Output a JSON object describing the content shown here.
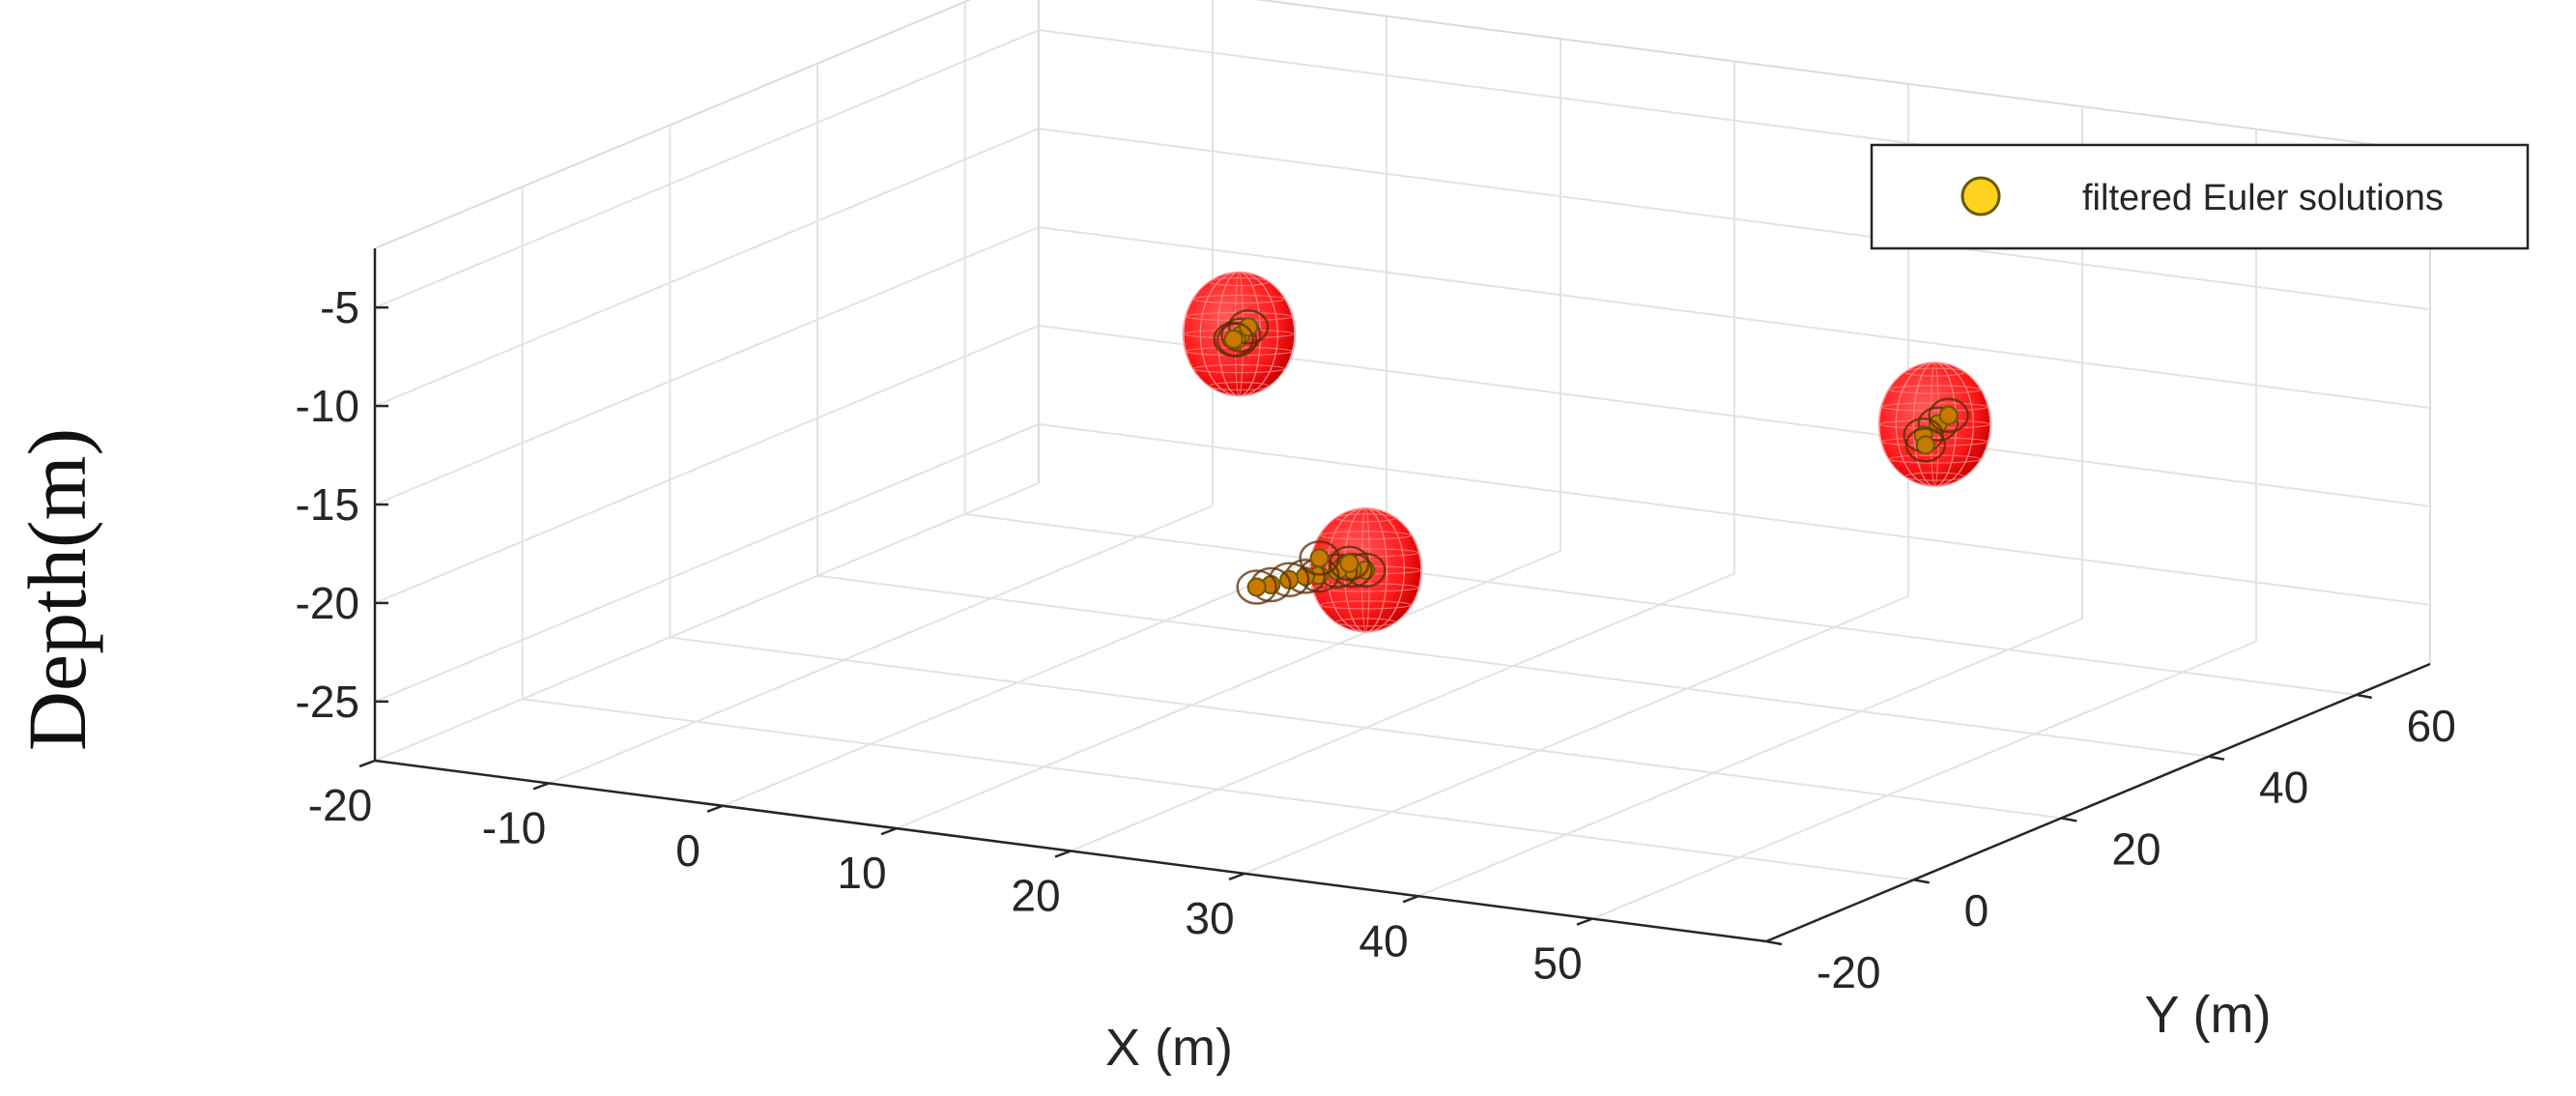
{
  "chart_data": {
    "type": "scatter",
    "dimensions": 3,
    "title": "",
    "xlabel": "X (m)",
    "ylabel": "Y (m)",
    "zlabel": "Depth(m)",
    "xlim": [
      -20,
      60
    ],
    "ylim": [
      -20,
      70
    ],
    "zlim": [
      -28,
      -2
    ],
    "x_ticks": [
      -20,
      -10,
      0,
      10,
      20,
      30,
      40,
      50
    ],
    "y_ticks": [
      -20,
      0,
      20,
      40,
      60
    ],
    "z_ticks": [
      -5,
      -10,
      -15,
      -20,
      -25
    ],
    "grid": true,
    "legend": {
      "position": "top-right",
      "entries": [
        "filtered Euler solutions"
      ]
    },
    "colors": {
      "marker_fill": "#ffd21f",
      "marker_edge": "#6b5a00",
      "source_sphere": "#ff1a1a",
      "solution_cluster": "#c97800"
    },
    "source_spheres": [
      {
        "x": 0,
        "y": 50,
        "z": -15
      },
      {
        "x": 20,
        "y": 20,
        "z": -20
      },
      {
        "x": 40,
        "y": 50,
        "z": -15
      }
    ],
    "series": [
      {
        "name": "filtered Euler solutions",
        "points": [
          {
            "x": 0.2,
            "y": 49.8,
            "z": -15.0
          },
          {
            "x": -0.3,
            "y": 50.4,
            "z": -15.4
          },
          {
            "x": 0.5,
            "y": 50.1,
            "z": -14.6
          },
          {
            "x": -0.1,
            "y": 49.5,
            "z": -15.2
          },
          {
            "x": 20.0,
            "y": 20.0,
            "z": -20.0
          },
          {
            "x": 18.6,
            "y": 21.5,
            "z": -20.4
          },
          {
            "x": 17.2,
            "y": 22.8,
            "z": -20.8
          },
          {
            "x": 15.8,
            "y": 23.6,
            "z": -21.3
          },
          {
            "x": 14.5,
            "y": 24.8,
            "z": -21.7
          },
          {
            "x": 13.1,
            "y": 25.9,
            "z": -22.2
          },
          {
            "x": 11.8,
            "y": 26.5,
            "z": -22.7
          },
          {
            "x": 10.6,
            "y": 27.4,
            "z": -23.1
          },
          {
            "x": 19.4,
            "y": 19.2,
            "z": -19.6
          },
          {
            "x": 16.5,
            "y": 22.0,
            "z": -20.1
          },
          {
            "x": 40.1,
            "y": 50.2,
            "z": -15.0
          },
          {
            "x": 39.6,
            "y": 49.4,
            "z": -15.5
          },
          {
            "x": 40.5,
            "y": 50.7,
            "z": -14.6
          },
          {
            "x": 39.9,
            "y": 49.0,
            "z": -15.9
          }
        ]
      }
    ]
  }
}
